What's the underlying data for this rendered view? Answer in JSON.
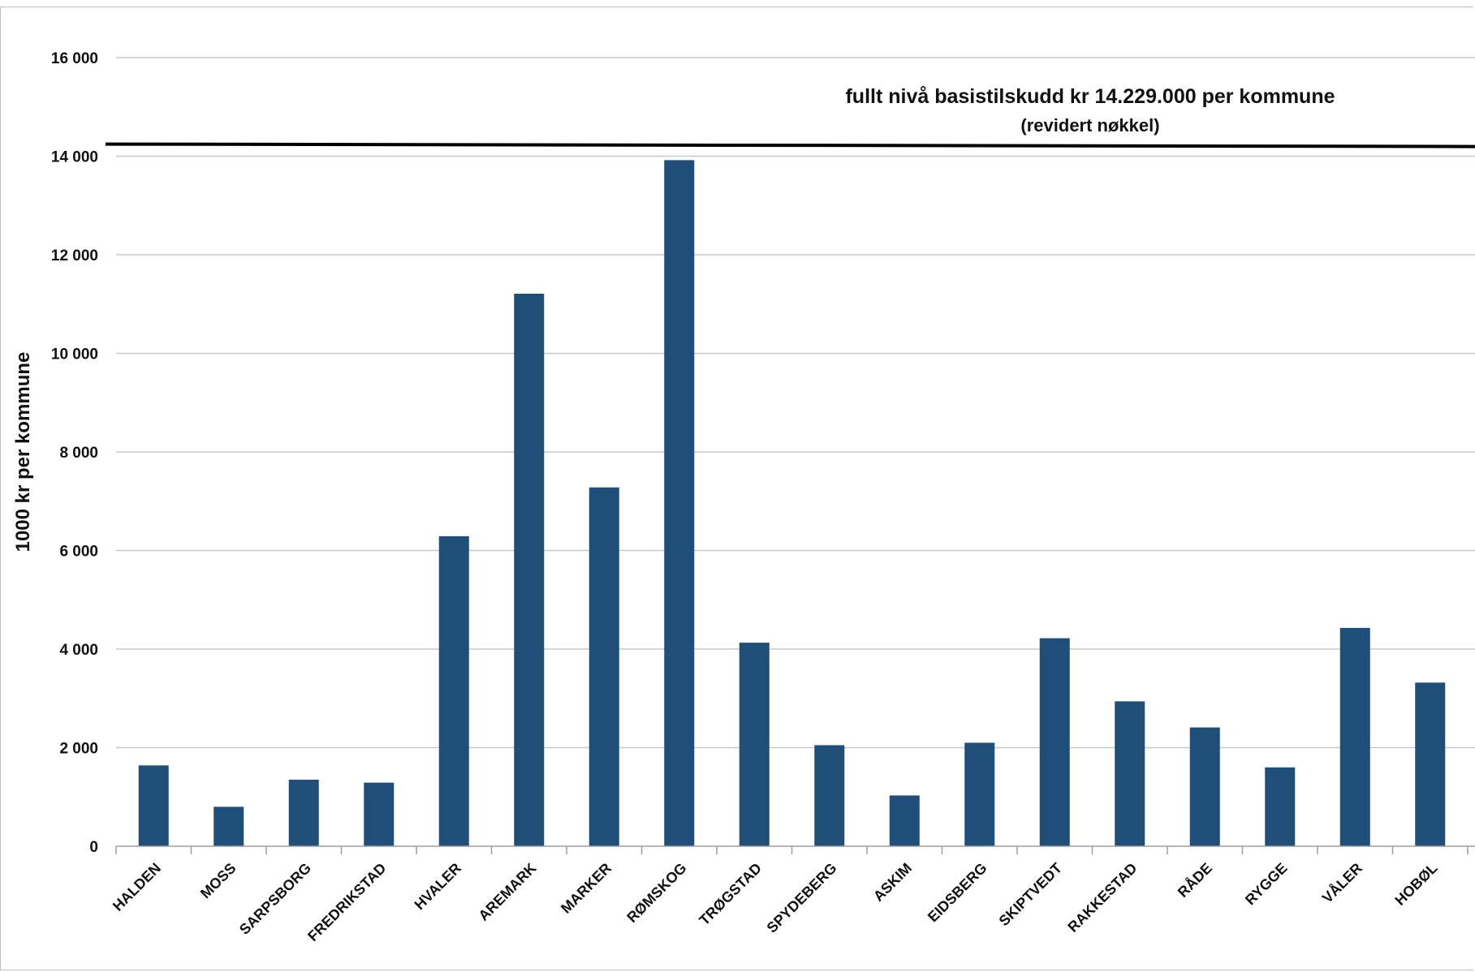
{
  "chart_data": {
    "type": "bar",
    "categories": [
      "HALDEN",
      "MOSS",
      "SARPSBORG",
      "FREDRIKSTAD",
      "HVALER",
      "AREMARK",
      "MARKER",
      "RØMSKOG",
      "TRØGSTAD",
      "SPYDEBERG",
      "ASKIM",
      "EIDSBERG",
      "SKIPTVEDT",
      "RAKKESTAD",
      "RÅDE",
      "RYGGE",
      "VÅLER",
      "HOBØL"
    ],
    "values": [
      1640,
      800,
      1350,
      1290,
      6290,
      11210,
      7280,
      13920,
      4130,
      2050,
      1030,
      2100,
      4220,
      2940,
      2410,
      1600,
      4430,
      3320
    ],
    "ylabel": "1000 kr per kommune",
    "xlabel": "",
    "ylim": [
      0,
      16000
    ],
    "yticks": [
      0,
      2000,
      4000,
      6000,
      8000,
      10000,
      12000,
      14000,
      16000
    ],
    "ytick_labels": [
      "0",
      "2 000",
      "4 000",
      "6 000",
      "8 000",
      "10 000",
      "12 000",
      "14 000",
      "16 000"
    ],
    "grid": true,
    "bar_color": "#1f4e79",
    "reference_line": {
      "value": 14229,
      "color": "#000000",
      "label_line1": "fullt nivå basistilskudd  kr 14.229.000 per kommune",
      "label_line2": "(revidert nøkkel)"
    }
  }
}
